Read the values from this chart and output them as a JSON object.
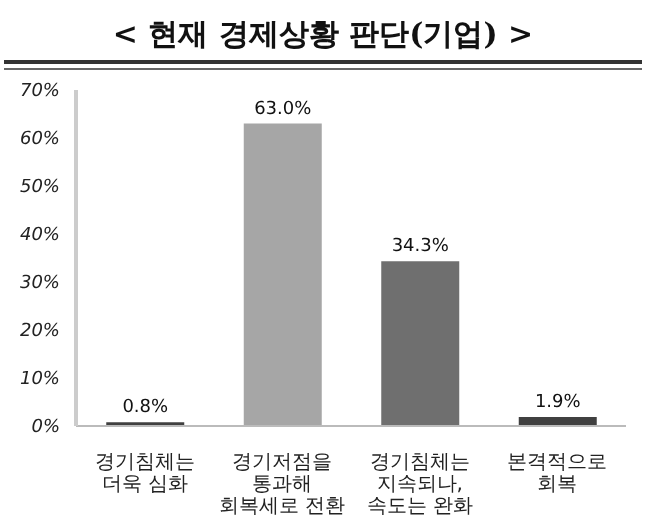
{
  "chart_data": {
    "type": "bar",
    "title": "< 현재 경제상황 판단(기업) >",
    "categories": [
      "경기침체는 더욱 심화",
      "경기저점을 통과해 회복세로 전환",
      "경기침체는 지속되나, 속도는 완화",
      "본격적으로 회복"
    ],
    "values": [
      0.8,
      63.0,
      34.3,
      1.9
    ],
    "colors": [
      "#404040",
      "#a6a6a6",
      "#6f6f6f",
      "#404040"
    ],
    "value_labels": [
      "0.8%",
      "63.0%",
      "34.3%",
      "1.9%"
    ],
    "ylim": [
      0,
      70
    ],
    "yticks": [
      {
        "value": 0,
        "label": "0%"
      },
      {
        "value": 10,
        "label": "10%"
      },
      {
        "value": 20,
        "label": "20%"
      },
      {
        "value": 30,
        "label": "30%"
      },
      {
        "value": 40,
        "label": "40%"
      },
      {
        "value": 50,
        "label": "50%"
      },
      {
        "value": 60,
        "label": "60%"
      },
      {
        "value": 70,
        "label": "70%"
      }
    ],
    "grid": false
  }
}
